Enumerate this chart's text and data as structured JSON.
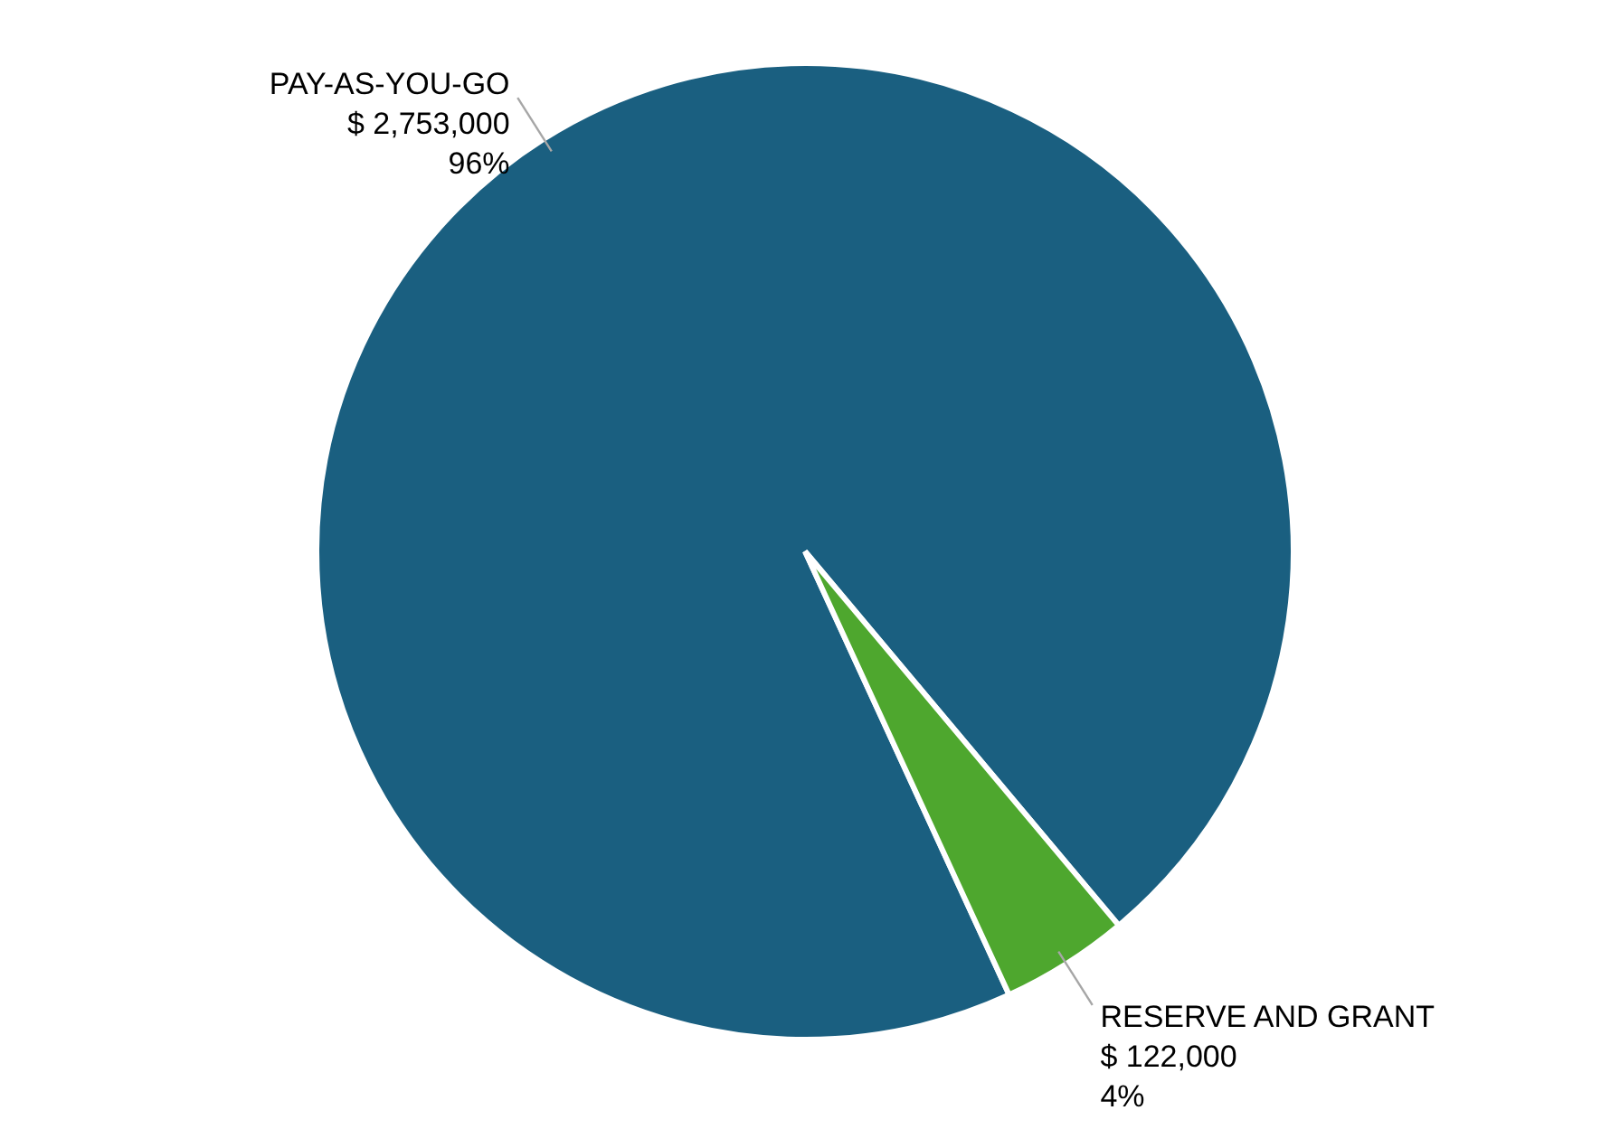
{
  "chart_data": {
    "type": "pie",
    "categories": [
      "PAY-AS-YOU-GO",
      "RESERVE AND GRANT"
    ],
    "values": [
      2753000,
      122000
    ],
    "colors": [
      "#1a5f80",
      "#4ea72e"
    ],
    "value_labels": [
      "$ 2,753,000\n96%",
      "$ 122,000\n4%"
    ]
  }
}
